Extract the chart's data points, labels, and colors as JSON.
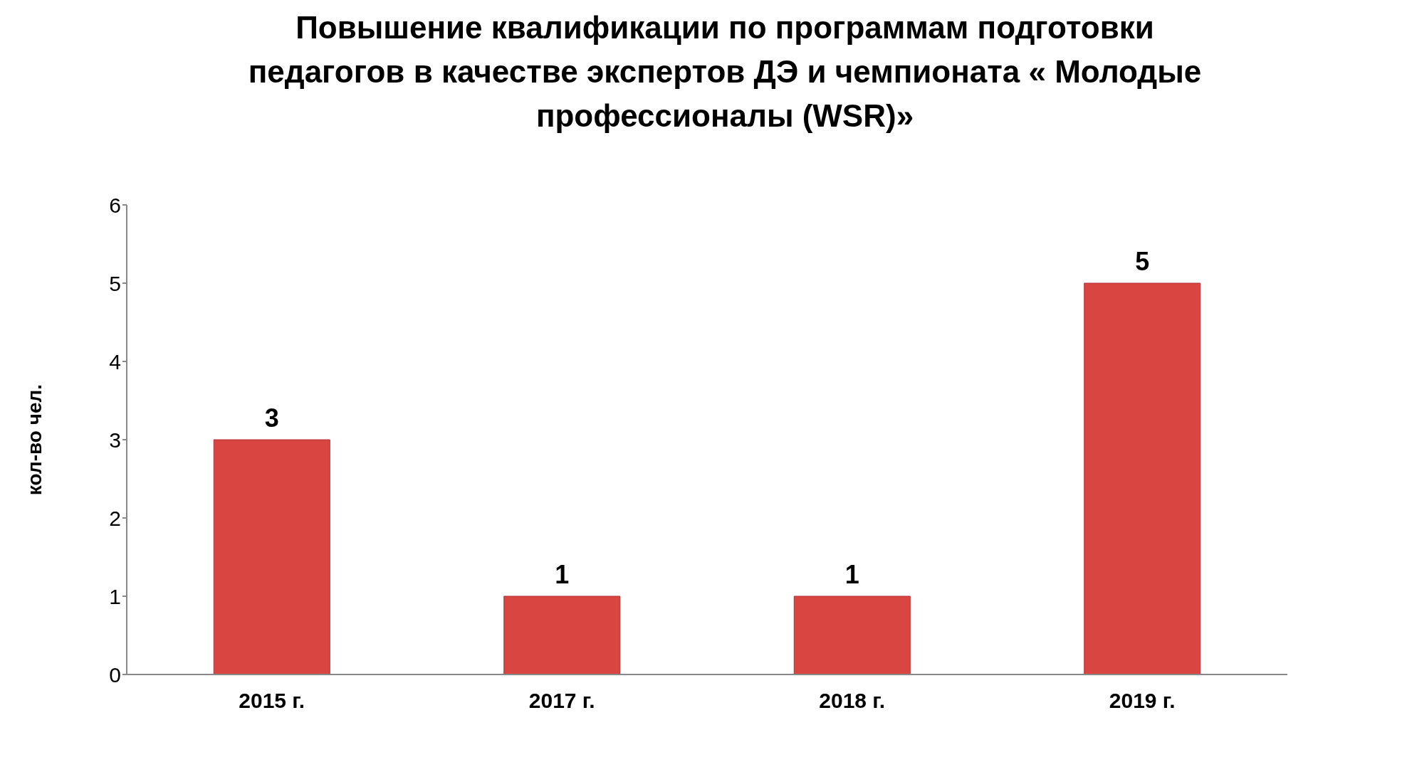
{
  "chart_data": {
    "type": "bar",
    "title": "Повышение квалификации по программам подготовки  педагогов в качестве экспертов ДЭ и чемпионата « Молодые профессионалы (WSR)»",
    "ylabel": "кол-во чел.",
    "categories": [
      "2015 г.",
      "2017 г.",
      "2018 г.",
      "2019 г."
    ],
    "values": [
      3,
      1,
      1,
      5
    ],
    "color": "#d94541",
    "ylim": [
      0,
      6
    ],
    "yticks": [
      0,
      1,
      2,
      3,
      4,
      5,
      6
    ],
    "data_labels": true,
    "grid": false,
    "legend": false
  }
}
